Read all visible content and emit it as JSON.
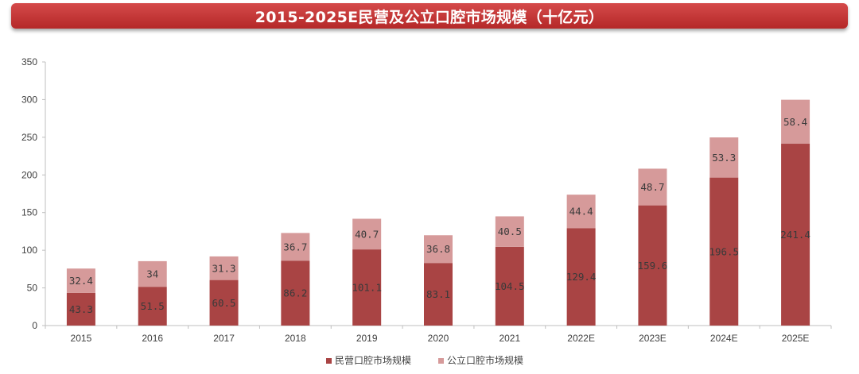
{
  "title": "2015-2025E民营及公立口腔市场规模（十亿元）",
  "colors": {
    "private": "#a94444",
    "public": "#d69a9a",
    "title_bar": "#c43434",
    "axis": "#bfbfbf"
  },
  "chart_data": {
    "type": "bar",
    "stacked": true,
    "title": "2015-2025E民营及公立口腔市场规模（十亿元）",
    "xlabel": "",
    "ylabel": "",
    "ylim": [
      0,
      350
    ],
    "yticks": [
      0,
      50,
      100,
      150,
      200,
      250,
      300,
      350
    ],
    "grid": false,
    "legend_position": "bottom-center",
    "categories": [
      "2015",
      "2016",
      "2017",
      "2018",
      "2019",
      "2020",
      "2021",
      "2022E",
      "2023E",
      "2024E",
      "2025E"
    ],
    "series": [
      {
        "name": "民营口腔市场规模",
        "color": "#a94444",
        "values": [
          43.3,
          51.5,
          60.5,
          86.2,
          101.1,
          83.1,
          104.5,
          129.4,
          159.6,
          196.5,
          241.4
        ],
        "labels": [
          "43.3",
          "51.5",
          "60.5",
          "86.2",
          "101.1",
          "83.1",
          "104.5",
          "129.4",
          "159.6",
          "196.5",
          "241.4"
        ]
      },
      {
        "name": "公立口腔市场规模",
        "color": "#d69a9a",
        "values": [
          32.4,
          34,
          31.3,
          36.7,
          40.7,
          36.8,
          40.5,
          44.4,
          48.7,
          53.3,
          58.4
        ],
        "labels": [
          "32.4",
          "34",
          "31.3",
          "36.7",
          "40.7",
          "36.8",
          "40.5",
          "44.4",
          "48.7",
          "53.3",
          "58.4"
        ]
      }
    ]
  }
}
